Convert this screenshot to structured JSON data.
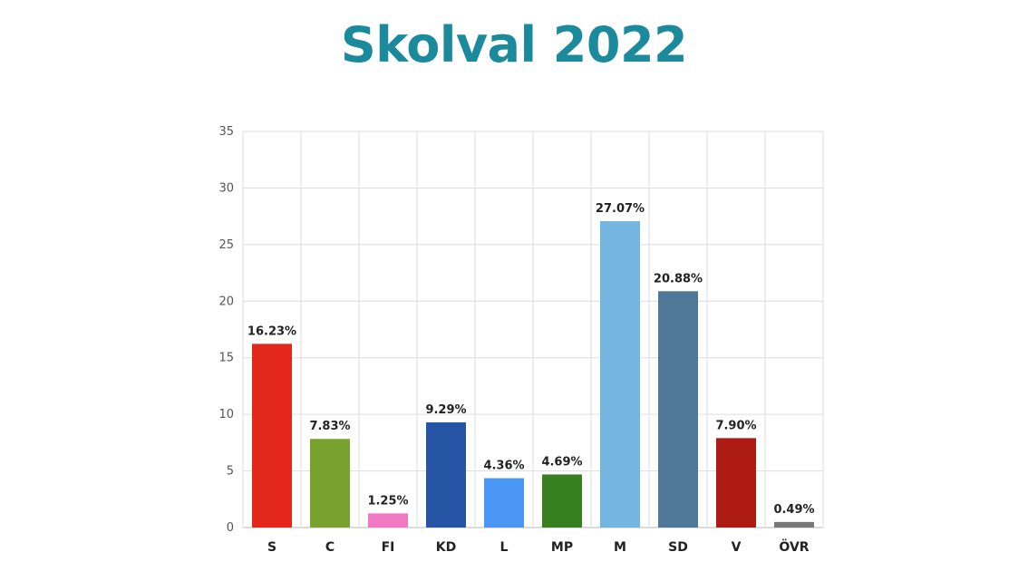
{
  "chart_data": {
    "type": "bar",
    "title": "Skolval 2022",
    "categories": [
      "S",
      "C",
      "FI",
      "KD",
      "L",
      "MP",
      "M",
      "SD",
      "V",
      "ÖVR"
    ],
    "values": [
      16.23,
      7.83,
      1.25,
      9.29,
      4.36,
      4.69,
      27.07,
      20.88,
      7.9,
      0.49
    ],
    "data_labels": [
      "16.23%",
      "7.83%",
      "1.25%",
      "9.29%",
      "4.36%",
      "4.69%",
      "27.07%",
      "20.88%",
      "7.90%",
      "0.49%"
    ],
    "colors": [
      "#e3271b",
      "#76a22d",
      "#ef79c5",
      "#2755a6",
      "#4a96f5",
      "#37801f",
      "#74b6e0",
      "#4f7898",
      "#ad1b13",
      "#777777"
    ],
    "ylim": [
      0,
      35
    ],
    "yticks": [
      0,
      5,
      10,
      15,
      20,
      25,
      30,
      35
    ],
    "grid": true,
    "xlabel": "",
    "ylabel": "",
    "legend": "none"
  }
}
